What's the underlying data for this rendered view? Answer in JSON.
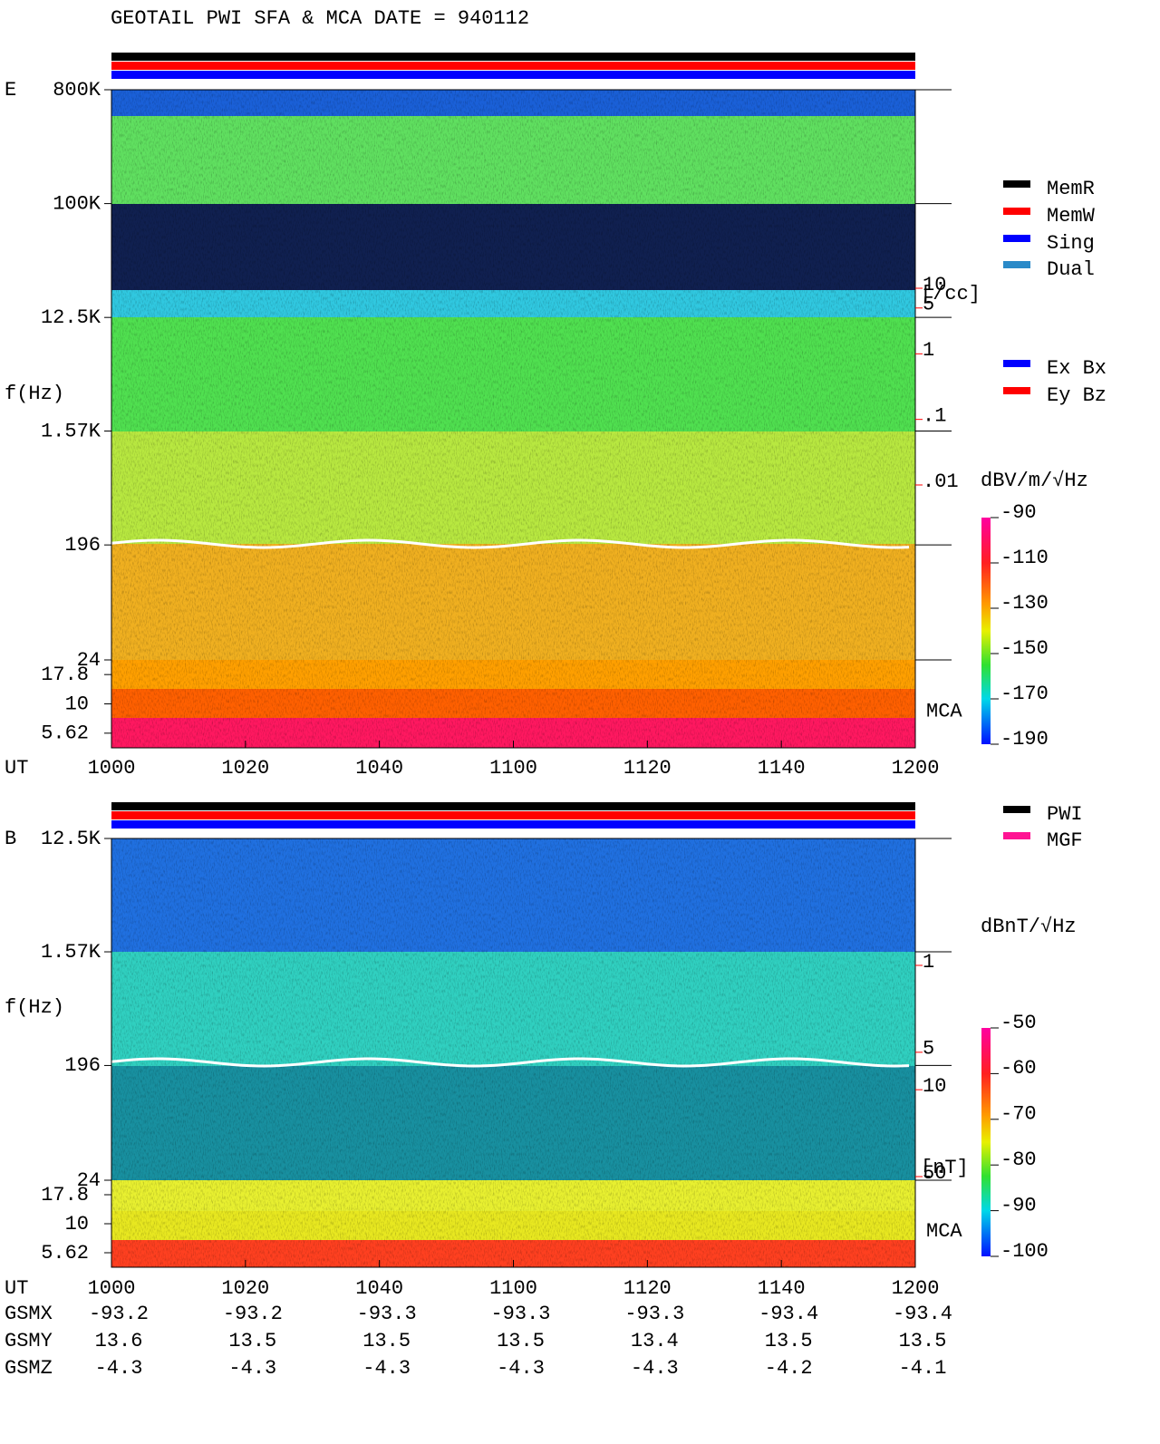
{
  "title": "GEOTAIL   PWI SFA & MCA   DATE = 940112",
  "chart_data": [
    {
      "type": "spectrogram",
      "panel": "E",
      "ylabel": "f(Hz)",
      "xlabel": "UT",
      "log_y": true,
      "ylim": [
        24,
        800000
      ],
      "yticks": [
        {
          "value": 800000,
          "label": "800K"
        },
        {
          "value": 100000,
          "label": "100K"
        },
        {
          "value": 12500,
          "label": "12.5K"
        },
        {
          "value": 1570,
          "label": "1.57K"
        },
        196,
        24
      ],
      "mca_label": "MCA",
      "mca_ticks": [
        17.8,
        10,
        5.62
      ],
      "xticks": [
        "1000",
        "1020",
        "1040",
        "1100",
        "1120",
        "1140",
        "1200"
      ],
      "colorbar": {
        "label": "dBV/m/√Hz",
        "lim": [
          -190,
          -90
        ],
        "ticks": [
          -90,
          -110,
          -130,
          -150,
          -170,
          -190
        ]
      },
      "density_axis": {
        "label": "[/cc]",
        "color": "#ff0000",
        "lim": [
          0.01,
          10
        ],
        "ticks": [
          10,
          5,
          1,
          {
            "value": 0.1,
            "label": ".1"
          },
          {
            "value": 0.01,
            "label": ".01"
          }
        ]
      },
      "legends": [
        [
          {
            "name": "MemR",
            "color": "#000000"
          },
          {
            "name": "MemW",
            "color": "#ff0000"
          },
          {
            "name": "Sing",
            "color": "#0000ff"
          },
          {
            "name": "Dual",
            "color": "#2a8ac8"
          }
        ],
        [
          {
            "name": "Ex Bx",
            "color": "#0000ff"
          },
          {
            "name": "Ey Bz",
            "color": "#ff0000"
          }
        ]
      ]
    },
    {
      "type": "spectrogram",
      "panel": "B",
      "ylabel": "f(Hz)",
      "xlabel": "UT",
      "log_y": true,
      "ylim": [
        24,
        12500
      ],
      "yticks": [
        {
          "value": 12500,
          "label": "12.5K"
        },
        {
          "value": 1570,
          "label": "1.57K"
        },
        196,
        24
      ],
      "mca_label": "MCA",
      "mca_ticks": [
        17.8,
        10,
        5.62
      ],
      "xticks": [
        "1000",
        "1020",
        "1040",
        "1100",
        "1120",
        "1140",
        "1200"
      ],
      "colorbar": {
        "label": "dBnT/√Hz",
        "lim": [
          -100,
          -50
        ],
        "ticks": [
          -50,
          -60,
          -70,
          -80,
          -90,
          -100
        ]
      },
      "density_axis": {
        "label": "[nT]",
        "color": "#ff0000",
        "lim": [
          1,
          50
        ],
        "ticks": [
          50,
          10,
          5,
          1
        ]
      },
      "legends": [
        [
          {
            "name": "PWI",
            "color": "#000000"
          },
          {
            "name": "MGF",
            "color": "#ff1493"
          }
        ]
      ]
    }
  ],
  "orbit": {
    "rows": [
      {
        "name": "GSMX",
        "values": [
          -93.2,
          -93.2,
          -93.3,
          -93.3,
          -93.3,
          -93.4,
          -93.4
        ]
      },
      {
        "name": "GSMY",
        "values": [
          13.6,
          13.5,
          13.5,
          13.5,
          13.4,
          13.5,
          13.5
        ]
      },
      {
        "name": "GSMZ",
        "values": [
          -4.3,
          -4.3,
          -4.3,
          -4.3,
          -4.3,
          -4.2,
          -4.1
        ]
      }
    ]
  }
}
